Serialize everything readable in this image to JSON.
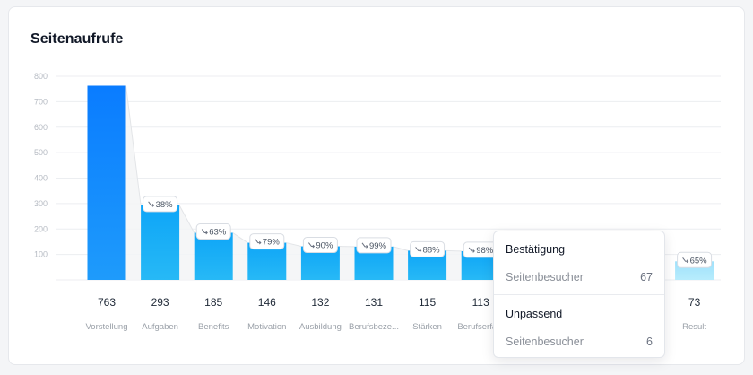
{
  "card": {
    "title": "Seitenaufrufe"
  },
  "chart_data": {
    "type": "bar",
    "title": "Seitenaufrufe",
    "categories": [
      "Vorstellung",
      "Aufgaben",
      "Benefits",
      "Motivation",
      "Ausbildung",
      "Berufsbeze...",
      "Stärken",
      "Berufserfa...",
      "",
      "",
      "",
      "Result"
    ],
    "values": [
      763,
      293,
      185,
      146,
      132,
      131,
      115,
      113,
      null,
      null,
      null,
      73
    ],
    "conversion_labels": [
      "",
      "38%",
      "63%",
      "79%",
      "90%",
      "99%",
      "88%",
      "98%",
      "",
      "",
      "",
      "65%"
    ],
    "ylim": [
      0,
      800
    ],
    "yticks": [
      100,
      200,
      300,
      400,
      500,
      600,
      700,
      800
    ],
    "grid": true,
    "colors": {
      "first_bar": "#0a84ff",
      "bars": "#14b0f5",
      "highlight_bar": "#a8e6fb",
      "grid": "#eceef1",
      "tick_text": "#b6bbc3",
      "label_text": "#9aa0a8",
      "value_text": "#1f2937"
    }
  },
  "tooltip": {
    "sections": [
      {
        "title": "Bestätigung",
        "label": "Seitenbesucher",
        "value": "67"
      },
      {
        "title": "Unpassend",
        "label": "Seitenbesucher",
        "value": "6"
      }
    ]
  }
}
